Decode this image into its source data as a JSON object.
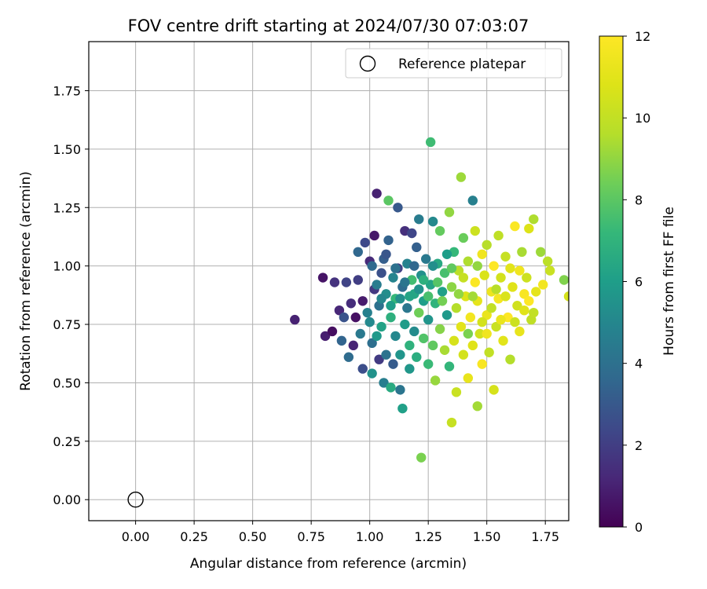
{
  "chart_data": {
    "type": "scatter",
    "title": "FOV centre drift starting at 2024/07/30 07:03:07",
    "xlabel": "Angular distance from reference (arcmin)",
    "ylabel": "Rotation from reference (arcmin)",
    "xlim": [
      -0.2,
      1.85
    ],
    "ylim": [
      -0.09,
      1.96
    ],
    "xticks": [
      "0.00",
      "0.25",
      "0.50",
      "0.75",
      "1.00",
      "1.25",
      "1.50",
      "1.75"
    ],
    "yticks": [
      "0.00",
      "0.25",
      "0.50",
      "0.75",
      "1.00",
      "1.25",
      "1.50",
      "1.75"
    ],
    "grid": true,
    "legend": {
      "placement": "top-right",
      "entries": [
        "Reference platepar"
      ]
    },
    "reference_point": {
      "name": "Reference platepar",
      "x": 0.0,
      "y": 0.0
    },
    "colorbar": {
      "label": "Hours from first FF file",
      "range": [
        0,
        12
      ],
      "ticks": [
        "0",
        "2",
        "4",
        "6",
        "8",
        "10",
        "12"
      ],
      "colormap": "viridis"
    },
    "points": [
      [
        0.68,
        0.77,
        1.0
      ],
      [
        0.8,
        0.95,
        0.6
      ],
      [
        0.81,
        0.7,
        0.9
      ],
      [
        0.84,
        0.72,
        0.4
      ],
      [
        0.85,
        0.93,
        1.6
      ],
      [
        0.87,
        0.81,
        1.2
      ],
      [
        0.88,
        0.68,
        3.5
      ],
      [
        0.89,
        0.78,
        2.8
      ],
      [
        0.9,
        0.93,
        2.2
      ],
      [
        0.91,
        0.61,
        3.8
      ],
      [
        0.92,
        0.84,
        1.4
      ],
      [
        0.93,
        0.66,
        1.1
      ],
      [
        0.94,
        0.78,
        0.5
      ],
      [
        0.95,
        0.94,
        2.0
      ],
      [
        0.95,
        1.06,
        3.6
      ],
      [
        0.96,
        0.71,
        4.4
      ],
      [
        0.97,
        0.56,
        2.6
      ],
      [
        0.97,
        0.85,
        0.8
      ],
      [
        0.98,
        1.1,
        2.4
      ],
      [
        0.99,
        0.8,
        4.7
      ],
      [
        1.0,
        0.76,
        5.1
      ],
      [
        1.0,
        1.02,
        1.3
      ],
      [
        1.01,
        0.54,
        5.5
      ],
      [
        1.01,
        0.67,
        3.9
      ],
      [
        1.02,
        0.9,
        1.8
      ],
      [
        1.02,
        1.13,
        0.7
      ],
      [
        1.03,
        1.31,
        1.0
      ],
      [
        1.03,
        0.7,
        5.8
      ],
      [
        1.04,
        0.6,
        1.9
      ],
      [
        1.04,
        0.83,
        4.0
      ],
      [
        1.05,
        0.97,
        2.7
      ],
      [
        1.05,
        0.74,
        6.2
      ],
      [
        1.06,
        1.03,
        3.2
      ],
      [
        1.06,
        0.5,
        4.6
      ],
      [
        1.07,
        0.88,
        5.3
      ],
      [
        1.07,
        0.62,
        4.1
      ],
      [
        1.08,
        1.28,
        8.0
      ],
      [
        1.08,
        1.11,
        3.4
      ],
      [
        1.09,
        0.78,
        6.8
      ],
      [
        1.09,
        0.48,
        6.6
      ],
      [
        1.1,
        0.95,
        4.9
      ],
      [
        1.1,
        0.58,
        3.1
      ],
      [
        1.11,
        0.86,
        7.2
      ],
      [
        1.11,
        0.7,
        5.0
      ],
      [
        1.12,
        1.25,
        3.0
      ],
      [
        1.12,
        0.99,
        2.1
      ],
      [
        1.13,
        0.62,
        5.6
      ],
      [
        1.13,
        0.47,
        4.2
      ],
      [
        1.14,
        0.39,
        6.1
      ],
      [
        1.14,
        0.91,
        3.8
      ],
      [
        1.15,
        1.15,
        1.5
      ],
      [
        1.15,
        0.75,
        5.9
      ],
      [
        1.16,
        0.82,
        4.3
      ],
      [
        1.16,
        1.01,
        4.8
      ],
      [
        1.17,
        0.66,
        6.9
      ],
      [
        1.17,
        0.56,
        5.7
      ],
      [
        1.18,
        1.14,
        2.3
      ],
      [
        1.18,
        0.94,
        7.5
      ],
      [
        1.19,
        0.72,
        5.2
      ],
      [
        1.19,
        0.88,
        6.4
      ],
      [
        1.2,
        1.08,
        3.3
      ],
      [
        1.2,
        0.61,
        6.7
      ],
      [
        1.21,
        0.8,
        8.4
      ],
      [
        1.21,
        1.2,
        4.5
      ],
      [
        1.22,
        0.18,
        8.6
      ],
      [
        1.22,
        0.96,
        5.4
      ],
      [
        1.23,
        0.69,
        7.8
      ],
      [
        1.23,
        0.85,
        6.0
      ],
      [
        1.24,
        1.03,
        4.4
      ],
      [
        1.25,
        0.58,
        7.3
      ],
      [
        1.25,
        0.77,
        5.6
      ],
      [
        1.26,
        1.53,
        7.4
      ],
      [
        1.26,
        0.92,
        6.3
      ],
      [
        1.27,
        0.66,
        8.1
      ],
      [
        1.27,
        1.19,
        5.1
      ],
      [
        1.28,
        0.84,
        7.0
      ],
      [
        1.28,
        0.51,
        9.1
      ],
      [
        1.29,
        1.01,
        6.5
      ],
      [
        1.3,
        0.73,
        8.8
      ],
      [
        1.3,
        1.15,
        8.2
      ],
      [
        1.31,
        0.89,
        6.1
      ],
      [
        1.32,
        0.64,
        9.4
      ],
      [
        1.32,
        0.97,
        7.6
      ],
      [
        1.33,
        0.79,
        5.8
      ],
      [
        1.34,
        1.23,
        9.0
      ],
      [
        1.34,
        0.57,
        7.1
      ],
      [
        1.35,
        0.33,
        10.1
      ],
      [
        1.35,
        0.91,
        8.9
      ],
      [
        1.36,
        0.68,
        10.6
      ],
      [
        1.36,
        1.06,
        7.2
      ],
      [
        1.37,
        0.82,
        9.6
      ],
      [
        1.37,
        0.46,
        10.2
      ],
      [
        1.38,
        0.98,
        9.8
      ],
      [
        1.39,
        1.38,
        9.2
      ],
      [
        1.39,
        0.74,
        11.0
      ],
      [
        1.4,
        0.62,
        10.5
      ],
      [
        1.4,
        1.12,
        8.3
      ],
      [
        1.41,
        0.87,
        10.8
      ],
      [
        1.42,
        0.52,
        11.2
      ],
      [
        1.42,
        1.02,
        9.5
      ],
      [
        1.43,
        0.78,
        11.6
      ],
      [
        1.44,
        1.28,
        4.7
      ],
      [
        1.44,
        0.66,
        10.9
      ],
      [
        1.45,
        0.93,
        11.9
      ],
      [
        1.45,
        1.15,
        10.3
      ],
      [
        1.46,
        0.4,
        9.3
      ],
      [
        1.46,
        0.85,
        11.1
      ],
      [
        1.47,
        0.71,
        10.4
      ],
      [
        1.48,
        1.05,
        11.5
      ],
      [
        1.48,
        0.58,
        11.8
      ],
      [
        1.49,
        0.96,
        10.7
      ],
      [
        1.5,
        0.79,
        11.3
      ],
      [
        1.5,
        1.09,
        9.7
      ],
      [
        1.51,
        0.63,
        10.0
      ],
      [
        1.52,
        0.89,
        11.4
      ],
      [
        1.53,
        0.47,
        10.6
      ],
      [
        1.53,
        1.0,
        12.0
      ],
      [
        1.54,
        0.74,
        10.2
      ],
      [
        1.55,
        1.13,
        9.9
      ],
      [
        1.55,
        0.86,
        11.7
      ],
      [
        1.56,
        0.95,
        10.5
      ],
      [
        1.57,
        0.68,
        11.0
      ],
      [
        1.58,
        1.04,
        10.1
      ],
      [
        1.59,
        0.78,
        12.0
      ],
      [
        1.6,
        0.6,
        9.6
      ],
      [
        1.61,
        0.91,
        10.9
      ],
      [
        1.62,
        1.17,
        11.9
      ],
      [
        1.63,
        0.83,
        10.4
      ],
      [
        1.64,
        0.72,
        11.2
      ],
      [
        1.65,
        1.06,
        9.4
      ],
      [
        1.66,
        0.88,
        11.8
      ],
      [
        1.67,
        0.95,
        10.3
      ],
      [
        1.68,
        1.16,
        10.8
      ],
      [
        1.69,
        0.77,
        9.9
      ],
      [
        1.7,
        1.2,
        9.5
      ],
      [
        1.71,
        0.89,
        11.1
      ],
      [
        1.73,
        1.06,
        9.2
      ],
      [
        1.74,
        0.92,
        11.6
      ],
      [
        1.76,
        1.02,
        9.8
      ],
      [
        1.77,
        0.98,
        10.2
      ],
      [
        1.83,
        0.94,
        8.7
      ],
      [
        1.85,
        0.87,
        10.6
      ],
      [
        1.01,
        1.0,
        3.7
      ],
      [
        1.03,
        0.92,
        4.5
      ],
      [
        1.05,
        0.86,
        5.0
      ],
      [
        1.07,
        1.05,
        2.9
      ],
      [
        1.09,
        0.83,
        6.0
      ],
      [
        1.11,
        0.99,
        4.0
      ],
      [
        1.13,
        0.86,
        5.4
      ],
      [
        1.15,
        0.93,
        4.2
      ],
      [
        1.17,
        0.87,
        6.3
      ],
      [
        1.19,
        1.0,
        3.6
      ],
      [
        1.21,
        0.9,
        5.5
      ],
      [
        1.23,
        0.94,
        6.8
      ],
      [
        1.25,
        0.87,
        7.6
      ],
      [
        1.27,
        1.0,
        5.3
      ],
      [
        1.29,
        0.93,
        7.9
      ],
      [
        1.31,
        0.85,
        8.5
      ],
      [
        1.33,
        1.05,
        6.0
      ],
      [
        1.35,
        0.99,
        8.1
      ],
      [
        1.38,
        0.88,
        9.0
      ],
      [
        1.4,
        0.95,
        10.1
      ],
      [
        1.42,
        0.71,
        8.6
      ],
      [
        1.44,
        0.87,
        9.3
      ],
      [
        1.46,
        1.0,
        9.0
      ],
      [
        1.48,
        0.76,
        10.5
      ],
      [
        1.5,
        0.71,
        11.5
      ],
      [
        1.52,
        0.82,
        10.0
      ],
      [
        1.54,
        0.9,
        9.7
      ],
      [
        1.56,
        0.77,
        11.3
      ],
      [
        1.58,
        0.87,
        10.7
      ],
      [
        1.6,
        0.99,
        11.0
      ],
      [
        1.62,
        0.76,
        10.3
      ],
      [
        1.64,
        0.98,
        11.5
      ],
      [
        1.66,
        0.81,
        10.9
      ],
      [
        1.68,
        0.85,
        12.0
      ],
      [
        1.7,
        0.8,
        10.0
      ]
    ]
  }
}
